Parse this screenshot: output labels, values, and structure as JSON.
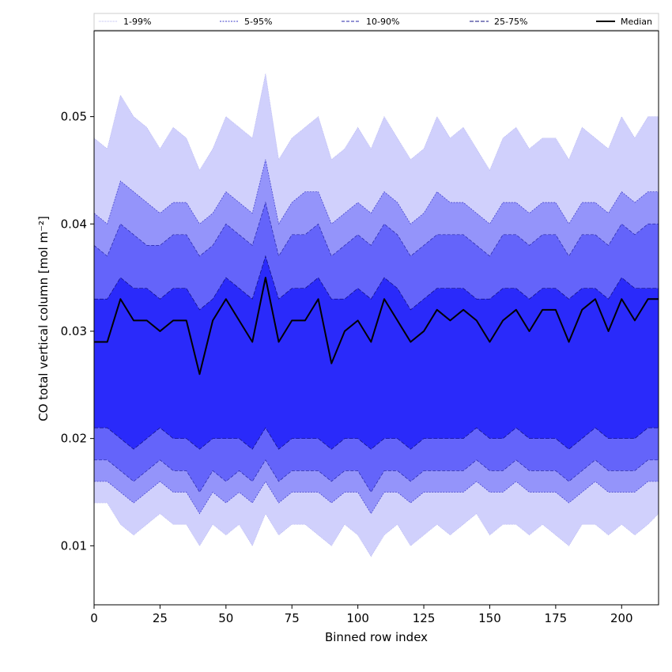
{
  "chart_data": {
    "type": "area",
    "title": "",
    "xlabel": "Binned row index",
    "ylabel": "CO total vertical column [mol m⁻²]",
    "xlim": [
      0,
      214
    ],
    "ylim": [
      0.0045,
      0.058
    ],
    "xticks": [
      0,
      25,
      50,
      75,
      100,
      125,
      150,
      175,
      200
    ],
    "yticks": [
      0.01,
      0.02,
      0.03,
      0.04,
      0.05
    ],
    "ytick_labels": [
      "0.01",
      "0.02",
      "0.03",
      "0.04",
      "0.05"
    ],
    "grid": false,
    "legend_position": "top",
    "x": [
      0,
      5,
      10,
      15,
      20,
      25,
      30,
      35,
      40,
      45,
      50,
      55,
      60,
      65,
      70,
      75,
      80,
      85,
      90,
      95,
      100,
      105,
      110,
      115,
      120,
      125,
      130,
      135,
      140,
      145,
      150,
      155,
      160,
      165,
      170,
      175,
      180,
      185,
      190,
      195,
      200,
      205,
      210,
      214
    ],
    "series": [
      {
        "name": "1-99%",
        "color": "#d0d0fc",
        "lower": [
          0.014,
          0.014,
          0.012,
          0.011,
          0.012,
          0.013,
          0.012,
          0.012,
          0.01,
          0.012,
          0.011,
          0.012,
          0.01,
          0.013,
          0.011,
          0.012,
          0.012,
          0.011,
          0.01,
          0.012,
          0.011,
          0.009,
          0.011,
          0.012,
          0.01,
          0.011,
          0.012,
          0.011,
          0.012,
          0.013,
          0.011,
          0.012,
          0.012,
          0.011,
          0.012,
          0.011,
          0.01,
          0.012,
          0.012,
          0.011,
          0.012,
          0.011,
          0.012,
          0.013
        ],
        "upper": [
          0.048,
          0.047,
          0.052,
          0.05,
          0.049,
          0.047,
          0.049,
          0.048,
          0.045,
          0.047,
          0.05,
          0.049,
          0.048,
          0.054,
          0.046,
          0.048,
          0.049,
          0.05,
          0.046,
          0.047,
          0.049,
          0.047,
          0.05,
          0.048,
          0.046,
          0.047,
          0.05,
          0.048,
          0.049,
          0.047,
          0.045,
          0.048,
          0.049,
          0.047,
          0.048,
          0.048,
          0.046,
          0.049,
          0.048,
          0.047,
          0.05,
          0.048,
          0.05,
          0.05
        ]
      },
      {
        "name": "5-95%",
        "color": "#9494fa",
        "lower": [
          0.016,
          0.016,
          0.015,
          0.014,
          0.015,
          0.016,
          0.015,
          0.015,
          0.013,
          0.015,
          0.014,
          0.015,
          0.014,
          0.016,
          0.014,
          0.015,
          0.015,
          0.015,
          0.014,
          0.015,
          0.015,
          0.013,
          0.015,
          0.015,
          0.014,
          0.015,
          0.015,
          0.015,
          0.015,
          0.016,
          0.015,
          0.015,
          0.016,
          0.015,
          0.015,
          0.015,
          0.014,
          0.015,
          0.016,
          0.015,
          0.015,
          0.015,
          0.016,
          0.016
        ],
        "upper": [
          0.041,
          0.04,
          0.044,
          0.043,
          0.042,
          0.041,
          0.042,
          0.042,
          0.04,
          0.041,
          0.043,
          0.042,
          0.041,
          0.046,
          0.04,
          0.042,
          0.043,
          0.043,
          0.04,
          0.041,
          0.042,
          0.041,
          0.043,
          0.042,
          0.04,
          0.041,
          0.043,
          0.042,
          0.042,
          0.041,
          0.04,
          0.042,
          0.042,
          0.041,
          0.042,
          0.042,
          0.04,
          0.042,
          0.042,
          0.041,
          0.043,
          0.042,
          0.043,
          0.043
        ]
      },
      {
        "name": "10-90%",
        "color": "#6464fa",
        "lower": [
          0.018,
          0.018,
          0.017,
          0.016,
          0.017,
          0.018,
          0.017,
          0.017,
          0.015,
          0.017,
          0.016,
          0.017,
          0.016,
          0.018,
          0.016,
          0.017,
          0.017,
          0.017,
          0.016,
          0.017,
          0.017,
          0.015,
          0.017,
          0.017,
          0.016,
          0.017,
          0.017,
          0.017,
          0.017,
          0.018,
          0.017,
          0.017,
          0.018,
          0.017,
          0.017,
          0.017,
          0.016,
          0.017,
          0.018,
          0.017,
          0.017,
          0.017,
          0.018,
          0.018
        ],
        "upper": [
          0.038,
          0.037,
          0.04,
          0.039,
          0.038,
          0.038,
          0.039,
          0.039,
          0.037,
          0.038,
          0.04,
          0.039,
          0.038,
          0.042,
          0.037,
          0.039,
          0.039,
          0.04,
          0.037,
          0.038,
          0.039,
          0.038,
          0.04,
          0.039,
          0.037,
          0.038,
          0.039,
          0.039,
          0.039,
          0.038,
          0.037,
          0.039,
          0.039,
          0.038,
          0.039,
          0.039,
          0.037,
          0.039,
          0.039,
          0.038,
          0.04,
          0.039,
          0.04,
          0.04
        ]
      },
      {
        "name": "25-75%",
        "color": "#2a2afa",
        "lower": [
          0.021,
          0.021,
          0.02,
          0.019,
          0.02,
          0.021,
          0.02,
          0.02,
          0.019,
          0.02,
          0.02,
          0.02,
          0.019,
          0.021,
          0.019,
          0.02,
          0.02,
          0.02,
          0.019,
          0.02,
          0.02,
          0.019,
          0.02,
          0.02,
          0.019,
          0.02,
          0.02,
          0.02,
          0.02,
          0.021,
          0.02,
          0.02,
          0.021,
          0.02,
          0.02,
          0.02,
          0.019,
          0.02,
          0.021,
          0.02,
          0.02,
          0.02,
          0.021,
          0.021
        ],
        "upper": [
          0.033,
          0.033,
          0.035,
          0.034,
          0.034,
          0.033,
          0.034,
          0.034,
          0.032,
          0.033,
          0.035,
          0.034,
          0.033,
          0.037,
          0.033,
          0.034,
          0.034,
          0.035,
          0.033,
          0.033,
          0.034,
          0.033,
          0.035,
          0.034,
          0.032,
          0.033,
          0.034,
          0.034,
          0.034,
          0.033,
          0.033,
          0.034,
          0.034,
          0.033,
          0.034,
          0.034,
          0.033,
          0.034,
          0.034,
          0.033,
          0.035,
          0.034,
          0.034,
          0.034
        ]
      },
      {
        "name": "Median",
        "color": "#000000",
        "values": [
          0.029,
          0.029,
          0.033,
          0.031,
          0.031,
          0.03,
          0.031,
          0.031,
          0.026,
          0.031,
          0.033,
          0.031,
          0.029,
          0.035,
          0.029,
          0.031,
          0.031,
          0.033,
          0.027,
          0.03,
          0.031,
          0.029,
          0.033,
          0.031,
          0.029,
          0.03,
          0.032,
          0.031,
          0.032,
          0.031,
          0.029,
          0.031,
          0.032,
          0.03,
          0.032,
          0.032,
          0.029,
          0.032,
          0.033,
          0.03,
          0.033,
          0.031,
          0.033,
          0.033
        ]
      }
    ]
  }
}
